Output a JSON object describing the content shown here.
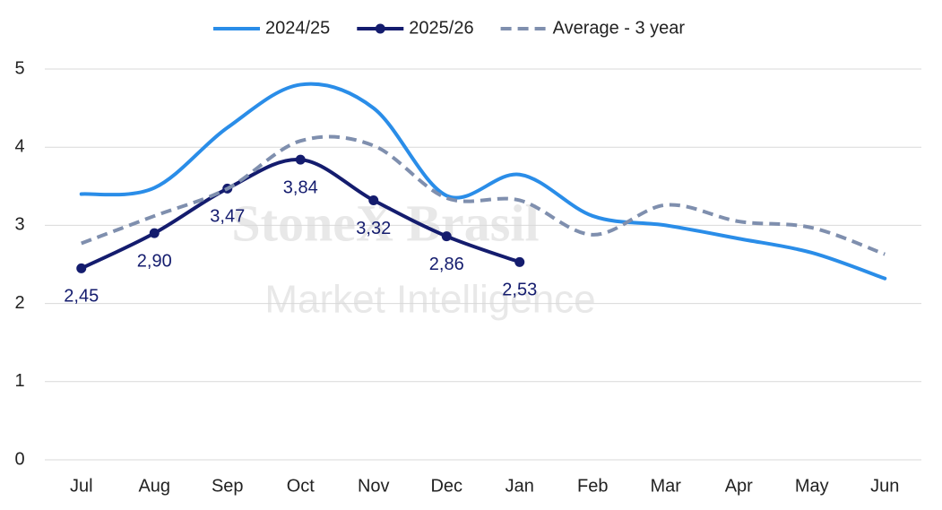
{
  "chart_data": {
    "type": "line",
    "categories": [
      "Jul",
      "Aug",
      "Sep",
      "Oct",
      "Nov",
      "Dec",
      "Jan",
      "Feb",
      "Mar",
      "Apr",
      "May",
      "Jun"
    ],
    "series": [
      {
        "name": "2024/25",
        "color": "#2a8de8",
        "dashed": false,
        "markers": false,
        "values": [
          3.4,
          3.48,
          4.25,
          4.8,
          4.5,
          3.38,
          3.65,
          3.12,
          3.0,
          2.83,
          2.65,
          2.32
        ]
      },
      {
        "name": "2025/26",
        "color": "#141c6e",
        "dashed": false,
        "markers": true,
        "values": [
          2.45,
          2.9,
          3.47,
          3.84,
          3.32,
          2.86,
          2.53,
          null,
          null,
          null,
          null,
          null
        ],
        "value_labels": [
          "2,45",
          "2,90",
          "3,47",
          "3,84",
          "3,32",
          "2,86",
          "2,53",
          null,
          null,
          null,
          null,
          null
        ]
      },
      {
        "name": "Average - 3 year",
        "color": "#7f8fae",
        "dashed": true,
        "markers": false,
        "values": [
          2.77,
          3.12,
          3.47,
          4.08,
          4.02,
          3.35,
          3.32,
          2.88,
          3.26,
          3.05,
          2.97,
          2.63
        ]
      }
    ],
    "ylim": [
      0,
      5
    ],
    "yticks": [
      0,
      1,
      2,
      3,
      4,
      5
    ],
    "grid": true,
    "legend": "top",
    "watermark": [
      "StoneX Brasil",
      "Market Intelligence"
    ]
  }
}
